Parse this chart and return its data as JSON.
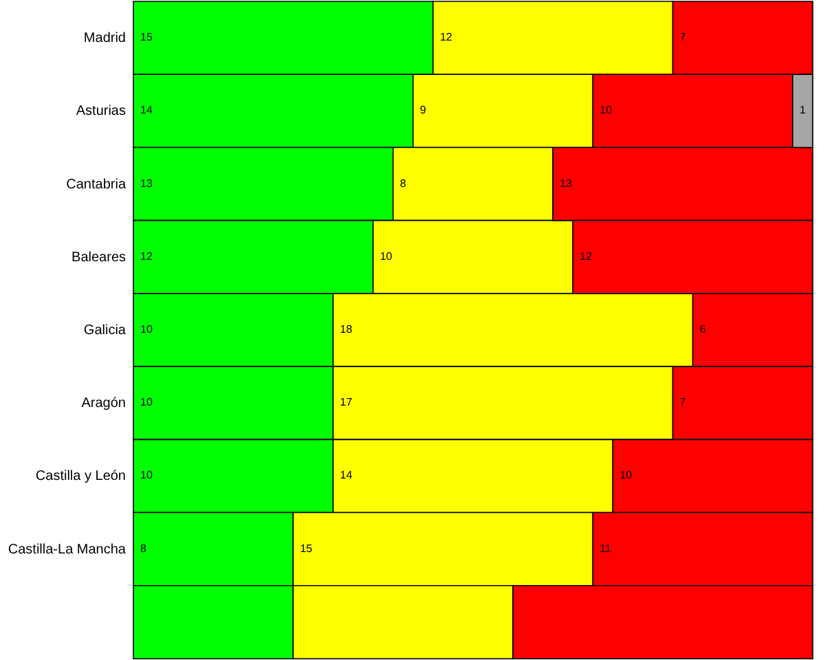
{
  "chart_data": {
    "type": "bar",
    "orientation": "horizontal",
    "stacked": true,
    "categories": [
      "Madrid",
      "Asturias",
      "Cantabria",
      "Baleares",
      "Galicia",
      "Aragón",
      "Castilla y León",
      "Castilla-La Mancha",
      null
    ],
    "xlim": [
      0,
      34
    ],
    "tick_labels": "y",
    "series": [
      {
        "color": "#00ff00",
        "values": [
          15,
          14,
          13,
          12,
          10,
          10,
          10,
          8,
          8
        ],
        "value_labels": [
          "15",
          "14",
          "13",
          "12",
          "10",
          "10",
          "10",
          "8",
          null
        ]
      },
      {
        "color": "#ffff00",
        "values": [
          12,
          9,
          8,
          10,
          18,
          17,
          14,
          15,
          11
        ],
        "value_labels": [
          "12",
          "9",
          "8",
          "10",
          "18",
          "17",
          "14",
          "15",
          null
        ]
      },
      {
        "color": "#ff0000",
        "values": [
          7,
          10,
          13,
          12,
          6,
          7,
          10,
          11,
          15
        ],
        "value_labels": [
          "7",
          "10",
          "13",
          "12",
          "6",
          "7",
          "10",
          "11",
          null
        ]
      },
      {
        "color": "#a6a6a6",
        "values": [
          null,
          1,
          null,
          null,
          null,
          null,
          null,
          null,
          null
        ],
        "value_labels": [
          null,
          "1",
          null,
          null,
          null,
          null,
          null,
          null,
          null
        ]
      }
    ]
  }
}
